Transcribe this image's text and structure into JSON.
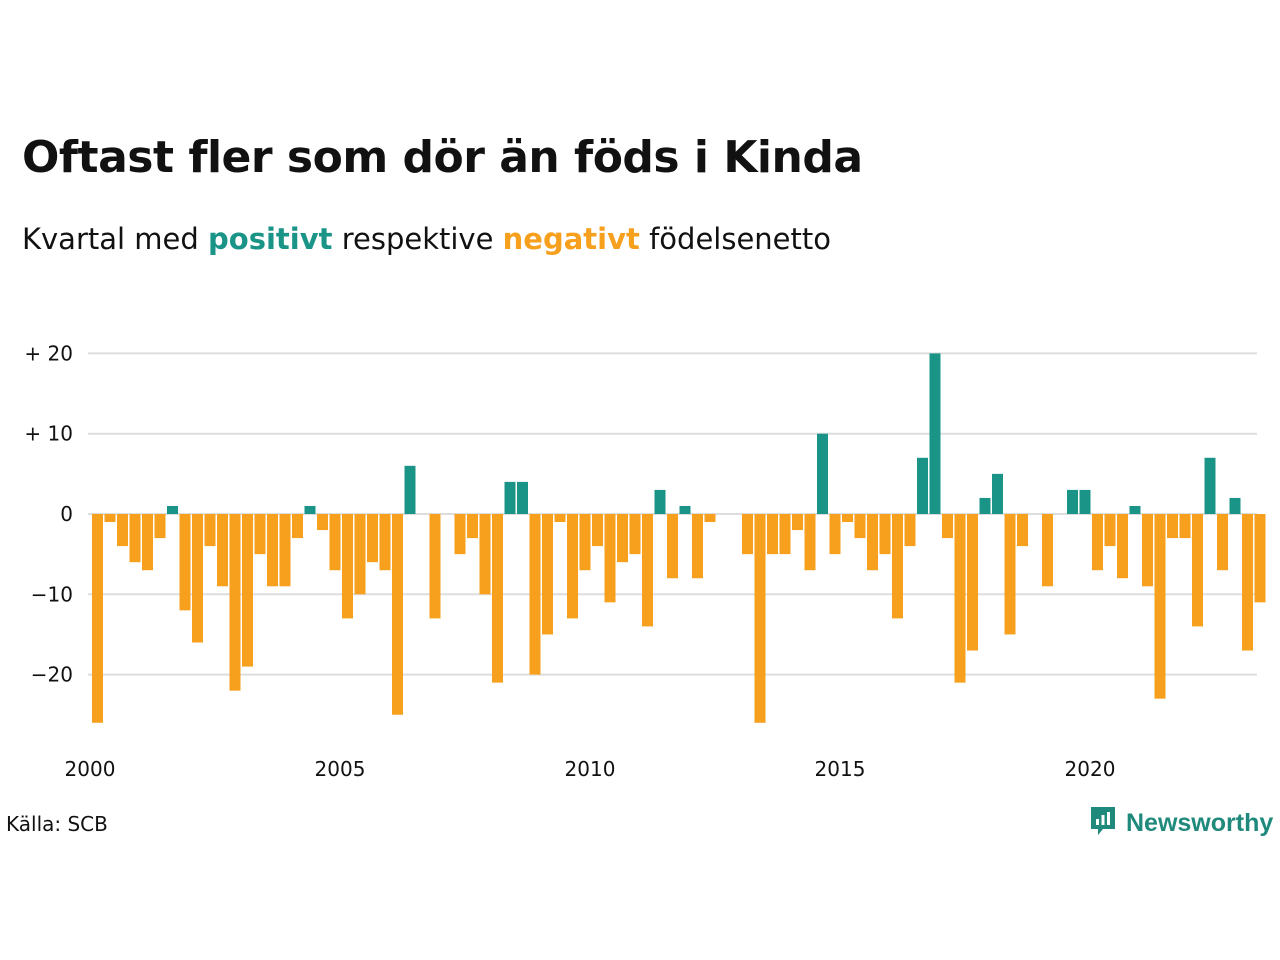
{
  "title": "Oftast fler som dör än föds i Kinda",
  "subtitle": {
    "prefix": "Kvartal med",
    "positive_word": "positivt",
    "middle": "respektive",
    "negative_word": "negativt",
    "suffix": "födelsenetto"
  },
  "source": "Källa: SCB",
  "brand": "Newsworthy",
  "colors": {
    "positive": "#1a9487",
    "negative": "#f7a01d",
    "grid": "#dddddd",
    "text": "#111111"
  },
  "chart_data": {
    "type": "bar",
    "title": "Oftast fler som dör än föds i Kinda",
    "subtitle": "Kvartal med positivt respektive negativt födelsenetto",
    "xlabel": "",
    "ylabel": "",
    "x_start_year": 2000,
    "periods_per_year": 4,
    "ylim": [
      -28,
      21
    ],
    "yticks": [
      20,
      10,
      0,
      -10,
      -20
    ],
    "ytick_labels": [
      "+ 20",
      "+ 10",
      "0",
      "−10",
      "−20"
    ],
    "xticks": [
      2000,
      2005,
      2010,
      2015,
      2020
    ],
    "xtick_labels": [
      "2000",
      "2005",
      "2010",
      "2015",
      "2020"
    ],
    "grid": true,
    "values": [
      -26,
      -1,
      -4,
      -6,
      -7,
      -3,
      1,
      -12,
      -16,
      -4,
      -9,
      -22,
      -19,
      -5,
      -9,
      -9,
      -3,
      1,
      -2,
      -7,
      -13,
      -10,
      -6,
      -7,
      -25,
      6,
      0,
      -13,
      0,
      -5,
      -3,
      -10,
      -21,
      4,
      4,
      -20,
      -15,
      -1,
      -13,
      -7,
      -4,
      -11,
      -6,
      -5,
      -14,
      3,
      -8,
      1,
      -8,
      -1,
      0,
      0,
      -5,
      -26,
      -5,
      -5,
      -2,
      -7,
      10,
      -5,
      -1,
      -3,
      -7,
      -5,
      -13,
      -4,
      7,
      20,
      -3,
      -21,
      -17,
      2,
      5,
      -15,
      -4,
      0,
      -9,
      0,
      3,
      3,
      -7,
      -4,
      -8,
      1,
      -9,
      -23,
      -3,
      -3,
      -14,
      7,
      -7,
      2,
      -17,
      -11
    ]
  }
}
